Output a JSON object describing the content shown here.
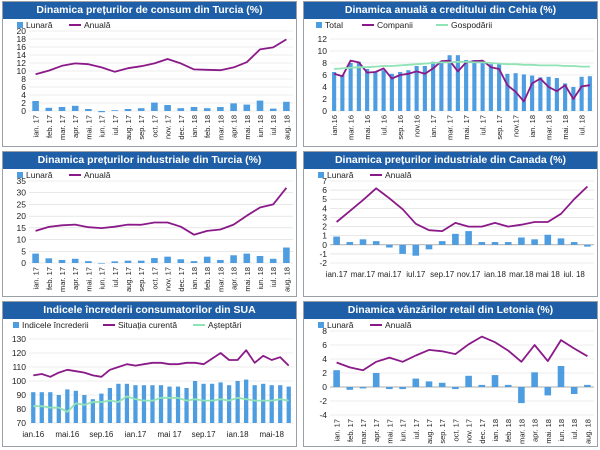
{
  "colors": {
    "bar": "#4d9de0",
    "line": "#8b1a89",
    "green": "#8fe3b4",
    "yellow": "#f2f200",
    "title_bg": "#1f5fa8"
  },
  "chart_data": [
    {
      "id": "p1",
      "type": "bar+line",
      "title": "Dinamica prețurilor de consum din Turcia (%)",
      "legend": [
        "Lunară",
        "Anuală"
      ],
      "ylim": [
        0,
        20
      ],
      "yticks": [
        0,
        2,
        4,
        6,
        8,
        10,
        12,
        14,
        16,
        18,
        20
      ],
      "x_labels": [
        "ian.17",
        "feb.17",
        "mar.17",
        "apr.17",
        "mai.17",
        "iun.17",
        "iul.17",
        "aug.17",
        "sep.17",
        "oct.17",
        "nov.17",
        "dec.17",
        "ian.18",
        "feb.18",
        "mar.18",
        "apr.18",
        "mai.18",
        "iun.18",
        "iul.18",
        "aug.18"
      ],
      "tick_labels": [
        "ian. 17",
        "feb. 17",
        "mar. 17",
        "apr. 17",
        "mai. 17",
        "iun. 17",
        "iul. 17",
        "aug. 17",
        "sep. 17",
        "oct. 17",
        "nov. 17",
        "dec. 17",
        "ian. 18",
        "feb. 18",
        "mar. 18",
        "apr. 18",
        "mai. 18",
        "iun. 18",
        "iul. 18",
        "aug. 18"
      ],
      "series": [
        {
          "name": "Lunară",
          "type": "bar",
          "values": [
            2.5,
            0.8,
            1.0,
            1.3,
            0.5,
            -0.3,
            0.2,
            0.5,
            0.7,
            2.1,
            1.5,
            0.7,
            1.0,
            0.7,
            1.0,
            1.9,
            1.6,
            2.6,
            0.6,
            2.3
          ]
        },
        {
          "name": "Anuală",
          "type": "line",
          "values": [
            9.2,
            10.1,
            11.3,
            11.9,
            11.7,
            10.9,
            9.8,
            10.7,
            11.2,
            11.9,
            13.0,
            11.9,
            10.4,
            10.3,
            10.2,
            10.9,
            12.2,
            15.4,
            15.9,
            17.9
          ]
        }
      ]
    },
    {
      "id": "p2",
      "type": "bar+line",
      "title": "Dinamica anuală a creditului din Cehia (%)",
      "legend": [
        "Total",
        "Companii",
        "Gospodării"
      ],
      "ylim": [
        0,
        12
      ],
      "yticks": [
        0,
        2,
        4,
        6,
        8,
        10,
        12
      ],
      "x_labels": [
        "ian.16",
        "feb.16",
        "mar.16",
        "apr.16",
        "mai.16",
        "iun.16",
        "iul.16",
        "aug.16",
        "sep.16",
        "oct.16",
        "nov.16",
        "dec.16",
        "ian.17",
        "feb.17",
        "mar.17",
        "apr.17",
        "mai.17",
        "iun.17",
        "iul.17",
        "aug.17",
        "sep.17",
        "oct.17",
        "nov.17",
        "dec.17",
        "ian.18",
        "feb.18",
        "mar.18",
        "apr.18",
        "mai.18",
        "iun.18",
        "iul.18",
        "aug.18"
      ],
      "tick_labels": [
        "ian.16",
        "",
        "mar. 16",
        "",
        "mai. 16",
        "",
        "iul. 16",
        "",
        "sep. 16",
        "",
        "nov.16",
        "",
        "ian. 17",
        "",
        "mar. 17",
        "",
        "mai. 17",
        "",
        "iul. 17",
        "",
        "sep. 17",
        "",
        "nov.17",
        "",
        "ian. 18",
        "",
        "mar. 18",
        "",
        "mai. 18",
        "",
        "iul. 18",
        ""
      ],
      "series": [
        {
          "name": "Total",
          "type": "bar",
          "values": [
            6.5,
            6.0,
            8.0,
            8.2,
            7.0,
            6.6,
            6.8,
            6.2,
            6.5,
            6.8,
            7.5,
            7.5,
            8.2,
            8.3,
            9.3,
            9.3,
            8.5,
            8.5,
            8.3,
            7.8,
            7.8,
            6.2,
            6.3,
            6.1,
            5.9,
            5.6,
            5.7,
            5.5,
            4.6,
            4.0,
            5.7,
            5.8
          ]
        },
        {
          "name": "Companii",
          "type": "line",
          "values": [
            6.2,
            5.8,
            8.4,
            8.1,
            6.4,
            6.5,
            7.1,
            5.4,
            6.0,
            6.2,
            6.6,
            6.2,
            7.1,
            8.3,
            8.4,
            6.6,
            8.1,
            8.3,
            8.4,
            7.3,
            7.0,
            4.3,
            3.2,
            1.6,
            4.6,
            5.4,
            4.0,
            3.3,
            4.3,
            2.0,
            4.1,
            4.3
          ]
        },
        {
          "name": "Gospodării",
          "type": "line",
          "values": [
            7.0,
            7.1,
            7.2,
            7.3,
            7.3,
            7.4,
            7.5,
            7.5,
            7.6,
            7.7,
            7.8,
            7.9,
            8.0,
            8.1,
            8.1,
            8.2,
            8.2,
            8.1,
            8.1,
            8.0,
            7.9,
            7.8,
            7.8,
            7.7,
            7.7,
            7.6,
            7.6,
            7.6,
            7.5,
            7.5,
            7.4,
            7.4
          ]
        }
      ]
    },
    {
      "id": "p3",
      "type": "bar+line",
      "title": "Dinamica prețurilor industriale din Turcia (%)",
      "legend": [
        "Lunară",
        "Anuală"
      ],
      "ylim": [
        0,
        35
      ],
      "yticks": [
        0,
        5,
        10,
        15,
        20,
        25,
        30,
        35
      ],
      "x_labels": [
        "ian.17",
        "feb.17",
        "mar.17",
        "apr.17",
        "mai.17",
        "iun.17",
        "iul.17",
        "aug.17",
        "sep.17",
        "oct.17",
        "nov.17",
        "dec.17",
        "ian.18",
        "feb.18",
        "mar.18",
        "apr.18",
        "mai.18",
        "iun.18",
        "iul.18",
        "aug.18"
      ],
      "tick_labels": [
        "ian. 17",
        "feb. 17",
        "mar. 17",
        "apr. 17",
        "mai. 17",
        "iun. 17",
        "iul. 17",
        "aug. 17",
        "sep. 17",
        "oct. 17",
        "nov. 17",
        "dec. 17",
        "ian. 18",
        "feb. 18",
        "mar. 18",
        "apr. 18",
        "mai. 18",
        "iun. 18",
        "iul. 18",
        "aug. 18"
      ],
      "series": [
        {
          "name": "Lunară",
          "type": "bar",
          "values": [
            4.0,
            2.0,
            1.3,
            1.8,
            0.8,
            -0.2,
            0.7,
            1.0,
            1.0,
            2.1,
            2.7,
            1.6,
            0.8,
            2.7,
            1.3,
            3.3,
            4.0,
            3.0,
            1.8,
            6.6
          ]
        },
        {
          "name": "Anuală",
          "type": "line",
          "values": [
            13.7,
            15.4,
            16.1,
            16.4,
            15.3,
            14.9,
            15.5,
            16.4,
            16.3,
            17.3,
            17.3,
            15.5,
            12.1,
            13.7,
            14.3,
            16.4,
            20.2,
            23.7,
            25.0,
            32.1
          ]
        }
      ]
    },
    {
      "id": "p4",
      "type": "bar+line",
      "title": "Dinamica prețurilor industriale din Canada (%)",
      "legend": [
        "Lunară",
        "Anuală"
      ],
      "ylim": [
        -2,
        7
      ],
      "yticks": [
        -2,
        -1,
        0,
        1,
        2,
        3,
        4,
        5,
        6,
        7
      ],
      "x_labels": [
        "ian.17",
        "feb.17",
        "mar.17",
        "apr.17",
        "mai.17",
        "iun.17",
        "iul.17",
        "aug.17",
        "sep.17",
        "oct.17",
        "nov.17",
        "dec.17",
        "ian.18",
        "feb.18",
        "mar.18",
        "apr.18",
        "mai.18",
        "iun.18",
        "iul.18",
        "aug.18"
      ],
      "tick_labels": [
        "ian.17",
        "",
        "mar.17",
        "",
        "mai.17",
        "",
        "iul.17",
        "",
        "sep.17",
        "",
        "nov.17",
        "",
        "ian.18",
        "",
        "mar.18",
        "",
        "mai 18",
        "",
        "iul. 18",
        ""
      ],
      "series": [
        {
          "name": "Lunară",
          "type": "bar",
          "values": [
            0.9,
            0.3,
            0.6,
            0.4,
            -0.3,
            -1.0,
            -1.2,
            -0.5,
            0.4,
            1.2,
            1.5,
            0.3,
            0.3,
            0.3,
            0.8,
            0.6,
            1.1,
            0.7,
            0.3,
            -0.2
          ]
        },
        {
          "name": "Anuală",
          "type": "line",
          "values": [
            2.5,
            3.7,
            4.9,
            6.2,
            5.1,
            3.9,
            2.3,
            1.6,
            1.5,
            2.4,
            2.0,
            2.0,
            2.4,
            2.0,
            2.2,
            2.5,
            2.5,
            3.4,
            5.0,
            6.4
          ]
        }
      ]
    },
    {
      "id": "p5",
      "type": "bar+line",
      "title": "Indicele încrederii consumatorilor din SUA",
      "legend": [
        "Indicele încrederii",
        "Situația curentă",
        "Așteptări"
      ],
      "ylim": [
        70,
        130
      ],
      "yticks": [
        70,
        80,
        90,
        100,
        110,
        120,
        130
      ],
      "x_labels": [
        "ian.16",
        "feb.16",
        "mar.16",
        "apr.16",
        "mai.16",
        "iun.16",
        "iul.16",
        "aug.16",
        "sep.16",
        "oct.16",
        "nov.16",
        "dec.16",
        "ian.17",
        "feb.17",
        "mar.17",
        "apr.17",
        "mai.17",
        "iun.17",
        "iul.17",
        "aug.17",
        "sep.17",
        "oct.17",
        "nov.17",
        "dec.17",
        "ian.18",
        "feb.18",
        "mar.18",
        "apr.18",
        "mai.18",
        "iun.18",
        "iul.18"
      ],
      "tick_labels": [
        "ian.16",
        "",
        "",
        "",
        "mai.16",
        "",
        "",
        "",
        "sep.16",
        "",
        "",
        "",
        "ian.17",
        "",
        "",
        "",
        "mai 17",
        "",
        "",
        "",
        "sep.17",
        "",
        "",
        "",
        "ian.18",
        "",
        "",
        "",
        "mai-18",
        "",
        ""
      ],
      "series": [
        {
          "name": "Indicele încrederii",
          "type": "bar",
          "values": [
            92,
            92,
            92,
            90,
            94,
            93,
            90,
            87,
            91,
            95,
            98,
            98,
            97,
            97,
            97,
            97,
            96,
            96,
            95,
            100,
            98,
            98,
            99,
            97,
            100,
            101,
            97,
            98,
            97,
            97,
            96
          ]
        },
        {
          "name": "Situația curentă",
          "type": "line",
          "values": [
            104,
            105,
            103,
            106,
            108,
            107,
            106,
            104,
            103,
            108,
            110,
            112,
            111,
            112,
            113,
            113,
            112,
            112,
            113,
            113,
            112,
            116,
            120,
            115,
            115,
            122,
            113,
            118,
            115,
            117,
            111
          ]
        },
        {
          "name": "Așteptări",
          "type": "line",
          "values": [
            82,
            82,
            81,
            81,
            78,
            84,
            83,
            85,
            85,
            86,
            85,
            89,
            87,
            86,
            86,
            88,
            88,
            88,
            86,
            87,
            86,
            86,
            87,
            86,
            88,
            87,
            86,
            86,
            86,
            87,
            86
          ]
        }
      ]
    },
    {
      "id": "p6",
      "type": "bar+line",
      "title": "Dinamica vânzărilor retail din Letonia (%)",
      "legend": [
        "Lunară",
        "Anuală"
      ],
      "ylim": [
        -4,
        8
      ],
      "yticks": [
        -4,
        -2,
        0,
        2,
        4,
        6,
        8
      ],
      "x_labels": [
        "ian.17",
        "feb.17",
        "mar.17",
        "apr.17",
        "mai.17",
        "iun.17",
        "iul.17",
        "aug.17",
        "sep.17",
        "oct.17",
        "nov.17",
        "dec.17",
        "ian.18",
        "feb.18",
        "mar.18",
        "apr.18",
        "mai.18",
        "iun.18",
        "iul.18",
        "aug.18"
      ],
      "tick_labels": [
        "ian. 17",
        "feb. 17",
        "mar. 17",
        "apr. 17",
        "mai. 17",
        "iun. 17",
        "iul. 17",
        "aug. 17",
        "sep. 17",
        "oct. 17",
        "nov. 17",
        "dec. 17",
        "ian. 18",
        "feb. 18",
        "mar. 18",
        "apr. 18",
        "mai. 18",
        "iun. 18",
        "iul. 18",
        "aug. 18"
      ],
      "series": [
        {
          "name": "Lunară",
          "type": "bar",
          "values": [
            2.4,
            -0.4,
            -0.2,
            2.0,
            -0.3,
            -0.3,
            1.2,
            0.8,
            0.6,
            -0.3,
            1.6,
            0.3,
            1.7,
            0.3,
            -2.3,
            2.1,
            -1.2,
            3.0,
            -1.0,
            0.3
          ]
        },
        {
          "name": "Anuală",
          "type": "line",
          "values": [
            3.5,
            2.8,
            2.4,
            3.6,
            4.2,
            3.6,
            4.5,
            5.3,
            5.1,
            4.7,
            6.1,
            7.2,
            6.4,
            5.2,
            3.6,
            6.0,
            3.7,
            6.7,
            5.5,
            4.4
          ]
        }
      ]
    }
  ]
}
